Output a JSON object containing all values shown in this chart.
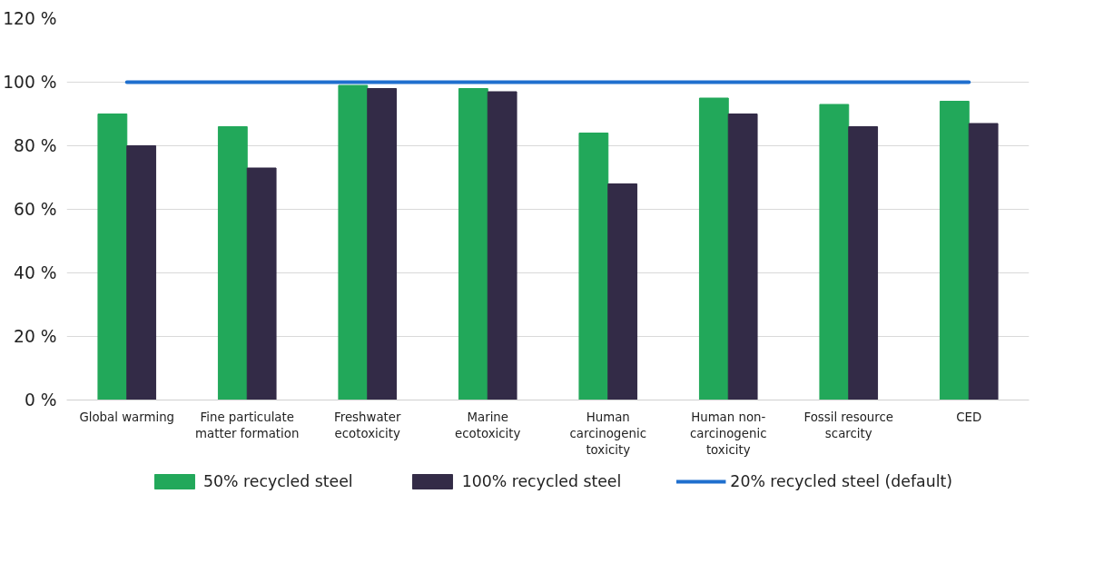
{
  "chart_data": {
    "type": "bar",
    "categories": [
      "Global warming",
      "Fine particulate matter formation",
      "Freshwater ecotoxicity",
      "Marine ecotoxicity",
      "Human carcinogenic toxicity",
      "Human non-carcinogenic toxicity",
      "Fossil resource scarcity",
      "CED"
    ],
    "series": [
      {
        "name": "50% recycled steel",
        "color": "#22a85a",
        "values": [
          90,
          86,
          99,
          98,
          84,
          95,
          93,
          94
        ]
      },
      {
        "name": "100% recycled steel",
        "color": "#332b47",
        "values": [
          80,
          73,
          98,
          97,
          68,
          90,
          86,
          87
        ]
      },
      {
        "name": "20% recycled steel (default)",
        "color": "#1f6fce",
        "type": "line",
        "values": [
          100,
          100,
          100,
          100,
          100,
          100,
          100,
          100
        ]
      }
    ],
    "ylim": [
      0,
      120
    ],
    "yticks": [
      {
        "value": 0,
        "label": "0 %"
      },
      {
        "value": 20,
        "label": "20 %"
      },
      {
        "value": 40,
        "label": "40 %"
      },
      {
        "value": 60,
        "label": "60 %"
      },
      {
        "value": 80,
        "label": "80 %"
      },
      {
        "value": 100,
        "label": "100 %"
      },
      {
        "value": 120,
        "label": "120 %"
      }
    ],
    "grid": "y",
    "legend": "bottom"
  }
}
